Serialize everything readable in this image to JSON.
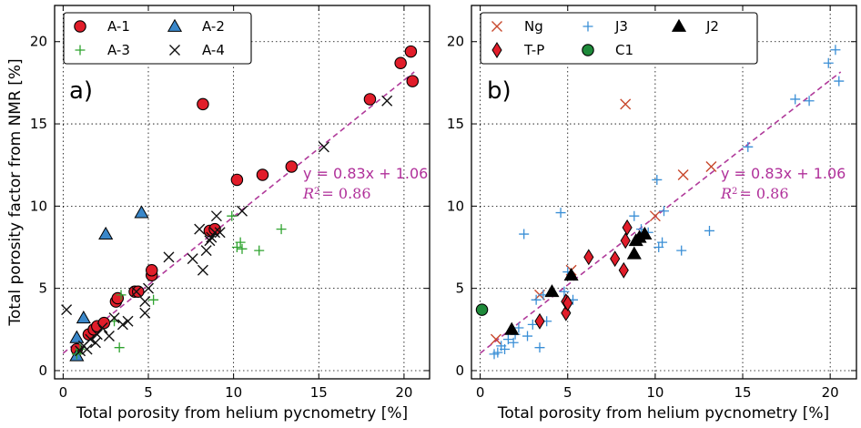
{
  "colors": {
    "fit": "#b03a9a",
    "A1": "#e11d2a",
    "A2": "#3a87c9",
    "A3": "#2fa32f",
    "A4": "#111111",
    "Ng": "#c8482d",
    "J3": "#3a8fd6",
    "J2": "#000000",
    "TP": "#e11d2a",
    "C1": "#1e8a3a"
  },
  "chart_data": [
    {
      "type": "scatter",
      "panel_label": "a)",
      "xlabel": "Total porosity from helium pycnometry [%]",
      "ylabel": "Total porosity factor from NMR [%]",
      "xlim": [
        -0.5,
        21.5
      ],
      "ylim": [
        -0.5,
        22.2
      ],
      "xticks": [
        0,
        5,
        10,
        15,
        20
      ],
      "yticks": [
        0,
        5,
        10,
        15,
        20
      ],
      "grid": true,
      "legend_position": "top-left",
      "fit": {
        "equation": "y = 0.83x + 1.06",
        "r2_label": "R",
        "r2_sup": "2",
        "r2_value": "= 0.86",
        "slope": 0.83,
        "intercept": 1.06
      },
      "series": [
        {
          "name": "A-1",
          "marker": "circle",
          "color_key": "A1",
          "x": [
            0.8,
            1.5,
            1.8,
            2.0,
            2.4,
            3.1,
            3.2,
            4.2,
            4.4,
            5.2,
            5.2,
            8.2,
            8.6,
            8.9,
            10.2,
            11.7,
            13.4,
            18.0,
            19.8,
            20.4,
            20.5
          ],
          "y": [
            1.3,
            2.2,
            2.5,
            2.7,
            2.9,
            4.2,
            4.4,
            4.8,
            4.8,
            5.8,
            6.1,
            16.2,
            8.5,
            8.6,
            11.6,
            11.9,
            12.4,
            16.5,
            18.7,
            19.4,
            17.6
          ]
        },
        {
          "name": "A-2",
          "marker": "triangle",
          "color_key": "A2",
          "x": [
            0.8,
            0.8,
            1.2,
            2.5,
            4.6
          ],
          "y": [
            0.9,
            2.0,
            3.2,
            8.3,
            9.6
          ]
        },
        {
          "name": "A-3",
          "marker": "plus",
          "color_key": "A3",
          "x": [
            0.8,
            1.0,
            3.0,
            3.3,
            3.4,
            5.3,
            9.9,
            10.2,
            10.4,
            10.5,
            11.5,
            12.8
          ],
          "y": [
            1.0,
            1.3,
            3.0,
            1.4,
            4.6,
            4.3,
            9.4,
            7.5,
            7.8,
            7.4,
            7.3,
            8.6
          ]
        },
        {
          "name": "A-4",
          "marker": "x",
          "color_key": "A4",
          "x": [
            0.2,
            1.0,
            1.2,
            1.4,
            1.6,
            1.9,
            2.0,
            2.3,
            2.7,
            3.0,
            3.5,
            3.8,
            4.3,
            4.8,
            4.8,
            5.0,
            6.2,
            7.6,
            8.0,
            8.2,
            8.4,
            8.6,
            8.7,
            8.9,
            9.0,
            9.2,
            10.5,
            15.3,
            19.0
          ],
          "y": [
            3.7,
            1.2,
            1.5,
            1.3,
            1.9,
            1.7,
            2.2,
            2.6,
            2.1,
            3.2,
            2.8,
            3.0,
            4.8,
            4.2,
            3.5,
            5.0,
            6.9,
            6.8,
            8.6,
            6.1,
            7.3,
            7.9,
            8.1,
            8.4,
            9.4,
            8.4,
            9.7,
            13.6,
            16.4
          ]
        }
      ]
    },
    {
      "type": "scatter",
      "panel_label": "b)",
      "xlabel": "Total porosity from helium pycnometry [%]",
      "ylabel": "",
      "xlim": [
        -0.5,
        21.5
      ],
      "ylim": [
        -0.5,
        22.2
      ],
      "xticks": [
        0,
        5,
        10,
        15,
        20
      ],
      "yticks": [
        0,
        5,
        10,
        15,
        20
      ],
      "grid": true,
      "legend_position": "top",
      "fit": {
        "equation": "y = 0.83x + 1.06",
        "r2_label": "R",
        "r2_sup": "2",
        "r2_value": "= 0.86",
        "slope": 0.83,
        "intercept": 1.06
      },
      "series": [
        {
          "name": "Ng",
          "marker": "x",
          "color_key": "Ng",
          "x": [
            0.9,
            3.4,
            5.2,
            8.3,
            10.0,
            11.6,
            13.2
          ],
          "y": [
            1.9,
            4.6,
            6.1,
            16.2,
            9.4,
            11.9,
            12.4
          ]
        },
        {
          "name": "J3",
          "marker": "plus",
          "color_key": "J3",
          "x": [
            0.8,
            1.0,
            1.2,
            1.4,
            1.6,
            1.9,
            2.0,
            2.2,
            2.5,
            2.7,
            3.0,
            3.2,
            3.4,
            3.6,
            3.8,
            4.6,
            4.8,
            5.0,
            5.3,
            8.8,
            9.2,
            9.6,
            10.1,
            10.2,
            10.4,
            10.5,
            11.5,
            13.1,
            15.3,
            18.0,
            18.8,
            19.9,
            20.3,
            20.5
          ],
          "y": [
            1.0,
            1.1,
            1.5,
            1.3,
            1.9,
            1.7,
            2.2,
            2.6,
            8.3,
            2.1,
            2.8,
            4.3,
            1.4,
            4.6,
            3.0,
            9.6,
            4.8,
            6.0,
            4.3,
            9.4,
            8.6,
            8.4,
            11.6,
            7.5,
            7.8,
            9.7,
            7.3,
            8.5,
            13.6,
            16.5,
            16.4,
            18.7,
            19.5,
            17.6
          ]
        },
        {
          "name": "J2",
          "marker": "triangle",
          "color_key": "J2",
          "x": [
            1.8,
            4.1,
            5.2,
            8.8,
            8.9,
            9.1,
            9.4
          ],
          "y": [
            2.5,
            4.8,
            5.8,
            7.1,
            7.9,
            8.1,
            8.3
          ]
        },
        {
          "name": "T-P",
          "marker": "diamond",
          "color_key": "TP",
          "x": [
            3.4,
            4.9,
            4.9,
            5.0,
            6.2,
            7.7,
            8.2,
            8.3,
            8.4
          ],
          "y": [
            3.0,
            3.5,
            4.2,
            4.1,
            6.9,
            6.8,
            6.1,
            7.9,
            8.7
          ]
        },
        {
          "name": "C1",
          "marker": "circle",
          "color_key": "C1",
          "x": [
            0.1
          ],
          "y": [
            3.7
          ]
        }
      ]
    }
  ]
}
